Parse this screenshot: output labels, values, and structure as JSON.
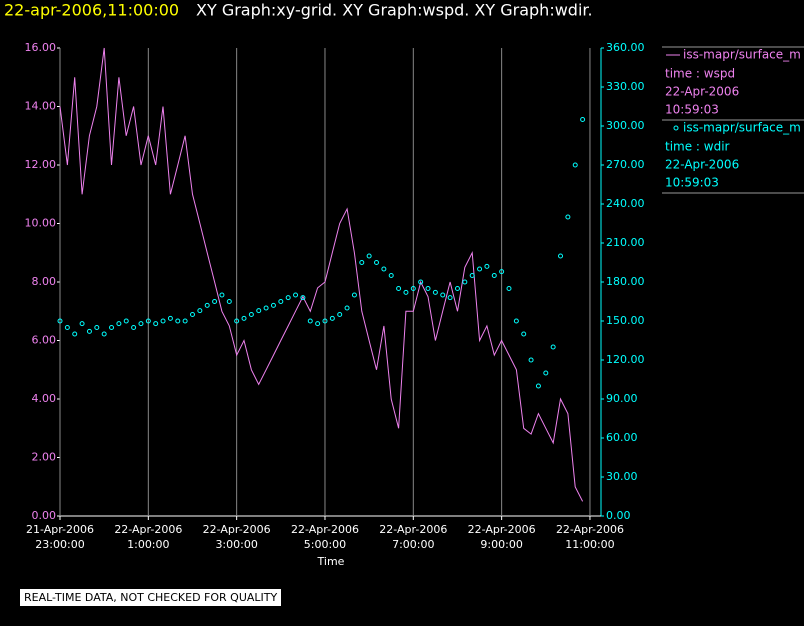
{
  "chart_data": {
    "type": "line",
    "title_time": "22-apr-2006,11:00:00",
    "title": "XY Graph:xy-grid.  XY Graph:wspd.  XY Graph:wdir.",
    "x_label": "Time",
    "note": "REAL-TIME DATA, NOT CHECKED FOR QUALITY",
    "xlim": [
      "2006-04-21 23:00",
      "2006-04-22 11:15"
    ],
    "xticks": [
      {
        "value": "2006-04-21 23:00",
        "label": [
          "21-Apr-2006",
          "23:00:00"
        ]
      },
      {
        "value": "2006-04-22 01:00",
        "label": [
          "22-Apr-2006",
          "1:00:00"
        ]
      },
      {
        "value": "2006-04-22 03:00",
        "label": [
          "22-Apr-2006",
          "3:00:00"
        ]
      },
      {
        "value": "2006-04-22 05:00",
        "label": [
          "22-Apr-2006",
          "5:00:00"
        ]
      },
      {
        "value": "2006-04-22 07:00",
        "label": [
          "22-Apr-2006",
          "7:00:00"
        ]
      },
      {
        "value": "2006-04-22 09:00",
        "label": [
          "22-Apr-2006",
          "9:00:00"
        ]
      },
      {
        "value": "2006-04-22 11:00",
        "label": [
          "22-Apr-2006",
          "11:00:00"
        ]
      }
    ],
    "grid": true,
    "ylim": [
      0,
      16
    ],
    "yticks": [
      {
        "value": 0,
        "label": "0.00"
      },
      {
        "value": 2,
        "label": "2.00"
      },
      {
        "value": 4,
        "label": "4.00"
      },
      {
        "value": 6,
        "label": "6.00"
      },
      {
        "value": 8,
        "label": "8.00"
      },
      {
        "value": 10,
        "label": "10.00"
      },
      {
        "value": 12,
        "label": "12.00"
      },
      {
        "value": 14,
        "label": "14.00"
      },
      {
        "value": 16,
        "label": "16.00"
      }
    ],
    "y2lim": [
      0,
      360
    ],
    "y2ticks": [
      {
        "value": 0,
        "label": "0.00"
      },
      {
        "value": 30,
        "label": "30.00"
      },
      {
        "value": 60,
        "label": "60.00"
      },
      {
        "value": 90,
        "label": "90.00"
      },
      {
        "value": 120,
        "label": "120.00"
      },
      {
        "value": 150,
        "label": "150.00"
      },
      {
        "value": 180,
        "label": "180.00"
      },
      {
        "value": 210,
        "label": "210.00"
      },
      {
        "value": 240,
        "label": "240.00"
      },
      {
        "value": 270,
        "label": "270.00"
      },
      {
        "value": 300,
        "label": "300.00"
      },
      {
        "value": 330,
        "label": "330.00"
      },
      {
        "value": 360,
        "label": "360.00"
      }
    ],
    "x": [
      "2006-04-21 23:00",
      "2006-04-21 23:10",
      "2006-04-21 23:20",
      "2006-04-21 23:30",
      "2006-04-21 23:40",
      "2006-04-21 23:50",
      "2006-04-22 00:00",
      "2006-04-22 00:10",
      "2006-04-22 00:20",
      "2006-04-22 00:30",
      "2006-04-22 00:40",
      "2006-04-22 00:50",
      "2006-04-22 01:00",
      "2006-04-22 01:10",
      "2006-04-22 01:20",
      "2006-04-22 01:30",
      "2006-04-22 01:40",
      "2006-04-22 01:50",
      "2006-04-22 02:00",
      "2006-04-22 02:10",
      "2006-04-22 02:20",
      "2006-04-22 02:30",
      "2006-04-22 02:40",
      "2006-04-22 02:50",
      "2006-04-22 03:00",
      "2006-04-22 03:10",
      "2006-04-22 03:20",
      "2006-04-22 03:30",
      "2006-04-22 03:40",
      "2006-04-22 03:50",
      "2006-04-22 04:00",
      "2006-04-22 04:10",
      "2006-04-22 04:20",
      "2006-04-22 04:30",
      "2006-04-22 04:40",
      "2006-04-22 04:50",
      "2006-04-22 05:00",
      "2006-04-22 05:10",
      "2006-04-22 05:20",
      "2006-04-22 05:30",
      "2006-04-22 05:40",
      "2006-04-22 05:50",
      "2006-04-22 06:00",
      "2006-04-22 06:10",
      "2006-04-22 06:20",
      "2006-04-22 06:30",
      "2006-04-22 06:40",
      "2006-04-22 06:50",
      "2006-04-22 07:00",
      "2006-04-22 07:10",
      "2006-04-22 07:20",
      "2006-04-22 07:30",
      "2006-04-22 07:40",
      "2006-04-22 07:50",
      "2006-04-22 08:00",
      "2006-04-22 08:10",
      "2006-04-22 08:20",
      "2006-04-22 08:30",
      "2006-04-22 08:40",
      "2006-04-22 08:50",
      "2006-04-22 09:00",
      "2006-04-22 09:10",
      "2006-04-22 09:20",
      "2006-04-22 09:30",
      "2006-04-22 09:40",
      "2006-04-22 09:50",
      "2006-04-22 10:00",
      "2006-04-22 10:10",
      "2006-04-22 10:20",
      "2006-04-22 10:30",
      "2006-04-22 10:40",
      "2006-04-22 10:50"
    ],
    "series": [
      {
        "name": "iss-mapr/surface_m",
        "color": "#ee82ee",
        "style": "line",
        "legend_lines": [
          "time : wspd",
          "22-Apr-2006",
          "10:59:03"
        ],
        "values": [
          14,
          12,
          15,
          11,
          13,
          14,
          16,
          12,
          15,
          13,
          14,
          12,
          13,
          12,
          14,
          11,
          12,
          13,
          11,
          10,
          9,
          8,
          7,
          6.5,
          5.5,
          6,
          5,
          4.5,
          5,
          5.5,
          6,
          6.5,
          7,
          7.5,
          7,
          7.8,
          8,
          9,
          10,
          10.5,
          9,
          7,
          6,
          5,
          6.5,
          4,
          3,
          7,
          7,
          8,
          7.5,
          6,
          7,
          8,
          7,
          8.5,
          9,
          6,
          6.5,
          5.5,
          6,
          5.5,
          5,
          3,
          2.8,
          3.5,
          3,
          2.5,
          4,
          3.5,
          1,
          0.5
        ]
      },
      {
        "name": "iss-mapr/surface_m",
        "color": "#00ffff",
        "style": "scatter",
        "axis": "y2",
        "legend_lines": [
          "time : wdir",
          "22-Apr-2006",
          "10:59:03"
        ],
        "values": [
          150,
          145,
          140,
          148,
          142,
          145,
          140,
          145,
          148,
          150,
          145,
          148,
          150,
          148,
          150,
          152,
          150,
          150,
          155,
          158,
          162,
          165,
          170,
          165,
          150,
          152,
          155,
          158,
          160,
          162,
          165,
          168,
          170,
          168,
          150,
          148,
          150,
          152,
          155,
          160,
          170,
          195,
          200,
          195,
          190,
          185,
          175,
          172,
          175,
          180,
          175,
          172,
          170,
          168,
          175,
          180,
          185,
          190,
          192,
          185,
          188,
          175,
          150,
          140,
          120,
          100,
          110,
          130,
          200,
          230,
          270,
          305
        ]
      }
    ]
  }
}
